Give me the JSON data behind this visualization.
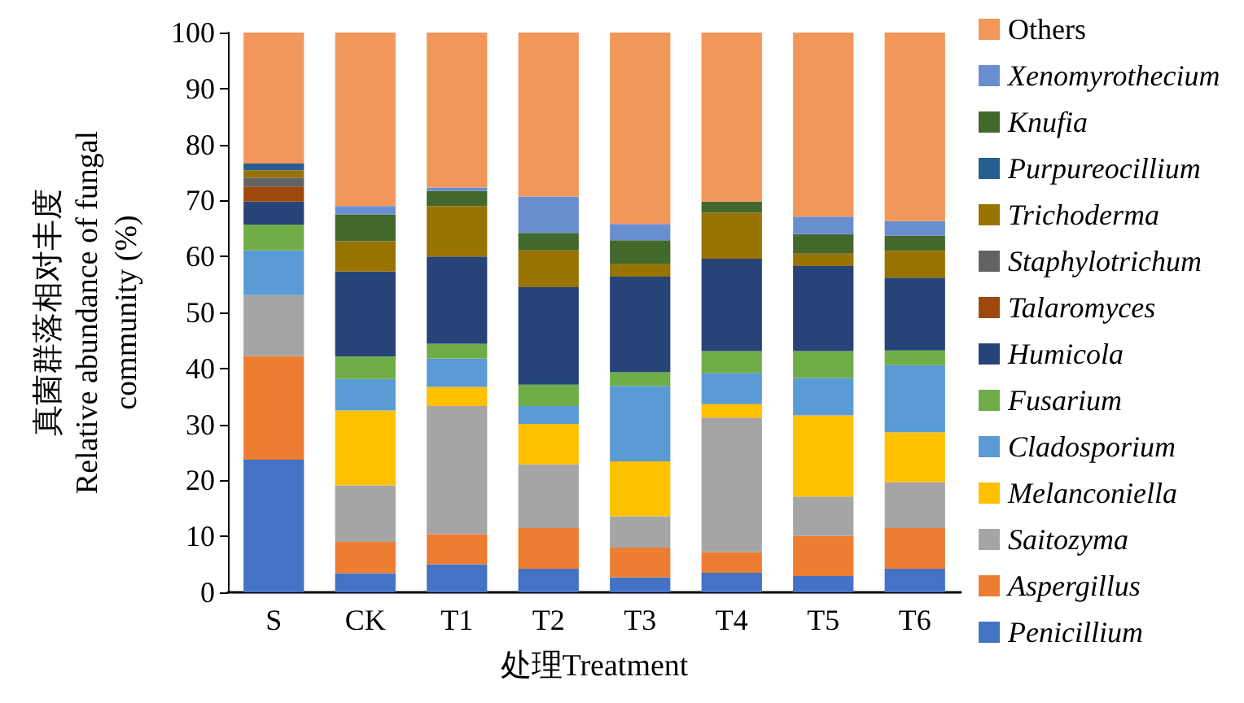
{
  "chart_data": {
    "type": "bar",
    "stacked": true,
    "xlabel": "处理Treatment",
    "ylabel": "真菌群落相对丰度\nRelative abundance of fungal\ncommunity (%)",
    "categories": [
      "S",
      "CK",
      "T1",
      "T2",
      "T3",
      "T4",
      "T5",
      "T6"
    ],
    "ylim": [
      0,
      100
    ],
    "yticks": [
      0,
      10,
      20,
      30,
      40,
      50,
      60,
      70,
      80,
      90,
      100
    ],
    "grid": false,
    "legend": "right",
    "series": [
      {
        "name": "Penicillium",
        "color": "#4472c4",
        "values": [
          23.7,
          3.4,
          5.0,
          4.2,
          2.7,
          3.5,
          2.9,
          4.2
        ]
      },
      {
        "name": "Aspergillus",
        "color": "#ed7d31",
        "values": [
          18.5,
          5.6,
          5.4,
          7.3,
          5.3,
          3.7,
          7.2,
          7.3
        ]
      },
      {
        "name": "Saitozyma",
        "color": "#a5a5a5",
        "values": [
          10.9,
          10.1,
          22.9,
          11.4,
          5.6,
          24.0,
          7.0,
          8.2
        ]
      },
      {
        "name": "Melanconiella",
        "color": "#ffc000",
        "values": [
          0,
          13.4,
          3.4,
          7.2,
          9.8,
          2.4,
          14.5,
          8.9
        ]
      },
      {
        "name": "Cladosporium",
        "color": "#5b9bd5",
        "values": [
          8.0,
          5.6,
          5.1,
          3.2,
          13.5,
          5.6,
          6.7,
          12.0
        ]
      },
      {
        "name": "Fusarium",
        "color": "#70ad47",
        "values": [
          4.6,
          4.0,
          2.6,
          3.8,
          2.4,
          3.9,
          4.8,
          2.6
        ]
      },
      {
        "name": "Humicola",
        "color": "#264478",
        "values": [
          4.1,
          15.2,
          15.6,
          17.4,
          17.1,
          16.5,
          15.2,
          13.0
        ]
      },
      {
        "name": "Talaromyces",
        "color": "#9e480e",
        "values": [
          2.7,
          0,
          0,
          0,
          0,
          0,
          0,
          0
        ]
      },
      {
        "name": "Staphylotrichum",
        "color": "#636363",
        "values": [
          1.6,
          0,
          0,
          0,
          0,
          0,
          0,
          0
        ]
      },
      {
        "name": "Trichoderma",
        "color": "#997300",
        "values": [
          1.3,
          5.4,
          9.0,
          6.6,
          2.2,
          8.2,
          2.2,
          4.8
        ]
      },
      {
        "name": "Purpureocillium",
        "color": "#255e91",
        "values": [
          1.2,
          0,
          0,
          0,
          0,
          0,
          0,
          0
        ]
      },
      {
        "name": "Knufia",
        "color": "#43682b",
        "values": [
          0,
          4.8,
          2.7,
          3.1,
          4.3,
          2.0,
          3.5,
          2.7
        ]
      },
      {
        "name": "Xenomyrothecium",
        "color": "#698ed0",
        "values": [
          0,
          1.5,
          0.6,
          6.5,
          2.9,
          0,
          3.1,
          2.6
        ]
      },
      {
        "name": "Others",
        "color": "#f1975a",
        "values": [
          23.4,
          31.0,
          27.7,
          29.3,
          34.2,
          30.2,
          32.9,
          33.7
        ]
      }
    ]
  }
}
